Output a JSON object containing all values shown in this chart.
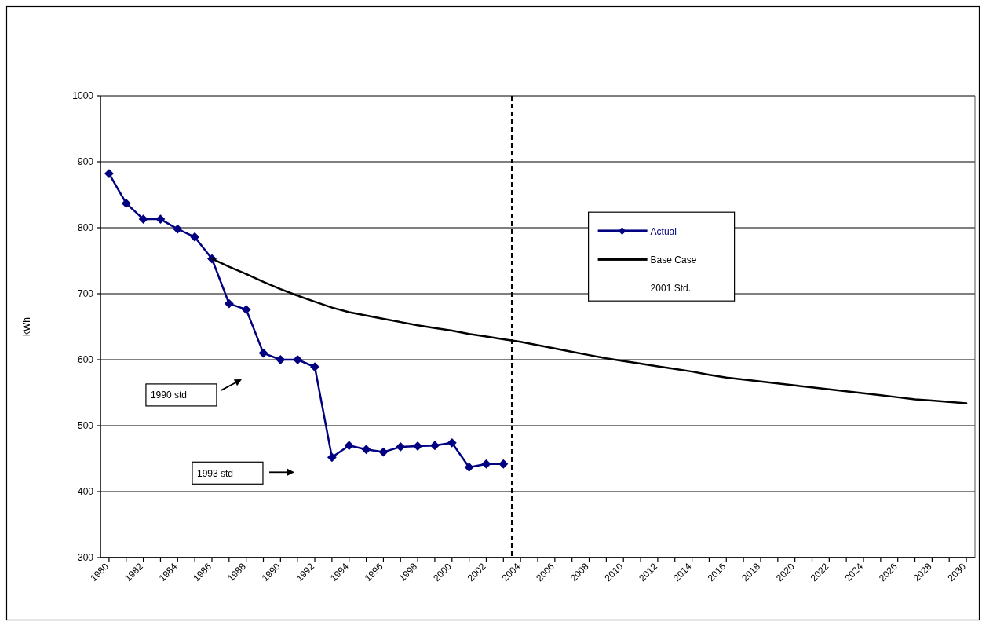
{
  "chart_data": {
    "type": "line",
    "ylabel": "kWh",
    "xlim": [
      1979.5,
      2030.5
    ],
    "xticks": [
      1980,
      {
        "value": 1981,
        "label": null
      },
      1982,
      {
        "value": 1983,
        "label": null
      },
      1984,
      {
        "value": 1985,
        "label": null
      },
      1986,
      {
        "value": 1987,
        "label": null
      },
      1988,
      {
        "value": 1989,
        "label": null
      },
      1990,
      {
        "value": 1991,
        "label": null
      },
      1992,
      {
        "value": 1993,
        "label": null
      },
      1994,
      {
        "value": 1995,
        "label": null
      },
      1996,
      {
        "value": 1997,
        "label": null
      },
      1998,
      {
        "value": 1999,
        "label": null
      },
      2000,
      {
        "value": 2001,
        "label": null
      },
      2002,
      {
        "value": 2003,
        "label": null
      },
      2004,
      {
        "value": 2005,
        "label": null
      },
      2006,
      {
        "value": 2007,
        "label": null
      },
      2008,
      {
        "value": 2009,
        "label": null
      },
      2010,
      {
        "value": 2011,
        "label": null
      },
      2012,
      {
        "value": 2013,
        "label": null
      },
      2014,
      {
        "value": 2015,
        "label": null
      },
      2016,
      {
        "value": 2017,
        "label": null
      },
      2018,
      {
        "value": 2019,
        "label": null
      },
      2020,
      {
        "value": 2021,
        "label": null
      },
      2022,
      {
        "value": 2023,
        "label": null
      },
      2024,
      {
        "value": 2025,
        "label": null
      },
      2026,
      {
        "value": 2027,
        "label": null
      },
      2028,
      {
        "value": 2029,
        "label": null
      },
      2030
    ],
    "ylim": [
      300,
      1000
    ],
    "yticks": [
      300,
      400,
      500,
      600,
      700,
      800,
      900,
      1000
    ],
    "grid": "y",
    "legend": "top",
    "series": [
      {
        "name": "Actual",
        "color": "#000080",
        "marker": "diamond",
        "x": [
          1980,
          1981,
          1982,
          1983,
          1984,
          1985,
          1986,
          1987,
          1988,
          1989,
          1990,
          1991,
          1992,
          1993,
          1994,
          1995,
          1996,
          1997,
          1998,
          1999,
          2000,
          2001,
          2002,
          2003
        ],
        "values": [
          882,
          837,
          813,
          813,
          798,
          786,
          753,
          685,
          676,
          610,
          600,
          600,
          589,
          452,
          470,
          464,
          460,
          468,
          469,
          470,
          474,
          437,
          442,
          442
        ]
      },
      {
        "name": "Base Case 2001 Std.",
        "color": "#000000",
        "marker": "none",
        "x": [
          1986,
          1987,
          1988,
          1989,
          1990,
          1991,
          1992,
          1993,
          1994,
          1995,
          1996,
          1997,
          1998,
          1999,
          2000,
          2001,
          2002,
          2003,
          2004,
          2005,
          2006,
          2007,
          2008,
          2009,
          2010,
          2011,
          2012,
          2013,
          2014,
          2015,
          2016,
          2017,
          2018,
          2019,
          2020,
          2021,
          2022,
          2023,
          2024,
          2025,
          2026,
          2027,
          2028,
          2029,
          2030
        ],
        "values": [
          753,
          741,
          730,
          718,
          707,
          697,
          688,
          679,
          672,
          667,
          662,
          657,
          652,
          648,
          644,
          639,
          635,
          631,
          627,
          622,
          617,
          612,
          607,
          602,
          598,
          594,
          590,
          586,
          582,
          577,
          573,
          570,
          567,
          564,
          561,
          558,
          555,
          552,
          549,
          546,
          543,
          540,
          538,
          536,
          534
        ]
      }
    ],
    "ref_lines": [
      {
        "axis": "x",
        "value": 2003.5,
        "line_style": "dashed",
        "color": "#000000"
      }
    ],
    "annotations": [
      "1990 std",
      "1993 std"
    ]
  }
}
